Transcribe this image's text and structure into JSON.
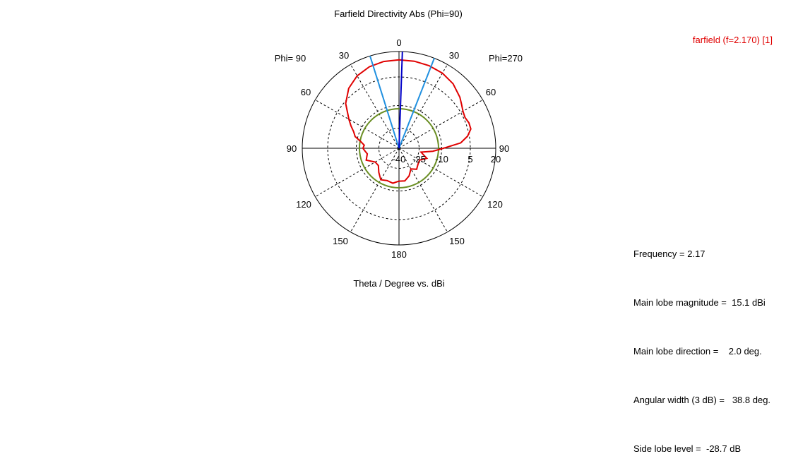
{
  "chart_data": {
    "type": "polar-line",
    "title": "Farfield Directivity Abs (Phi=90)",
    "xlabel": "Theta / Degree vs. dBi",
    "phi_left_label": "Phi= 90",
    "phi_right_label": "Phi=270",
    "angle_labels": {
      "top": "0",
      "upper_left": "30",
      "upper_right": "30",
      "left_60": "60",
      "right_60": "60",
      "left_90": "90",
      "right_90": "90",
      "left_120": "120",
      "right_120": "120",
      "left_150": "150",
      "right_150": "150",
      "bottom": "180"
    },
    "radial_tick_labels": [
      "-40",
      "-25",
      "-10",
      "5",
      "20"
    ],
    "radial_range": [
      -40,
      20
    ],
    "legend": {
      "entry": "farfield (f=2.170) [1]",
      "color": "#e00000",
      "placement": "top-right"
    },
    "colors": {
      "pattern": "#e00000",
      "main_lobe": "#0000c8",
      "beam_width": "#2090e0",
      "threshold": "#6a8e23",
      "grid": "#000000"
    },
    "series": [
      {
        "color": "#e00000",
        "theta_deg": [
          -180,
          -170,
          -160,
          -150,
          -140,
          -130,
          -120,
          -110,
          -100,
          -95,
          -90,
          -85,
          -80,
          -75,
          -70,
          -65,
          -60,
          -50,
          -40,
          -30,
          -20,
          -10,
          0,
          10,
          20,
          30,
          40,
          50,
          55,
          60,
          65,
          70,
          75,
          80,
          85,
          90,
          95,
          100,
          110,
          120,
          130,
          140,
          150,
          160,
          170,
          180
        ],
        "value_dbi": [
          -16.5,
          -14.8,
          -15.5,
          -14.2,
          -17.5,
          -20.5,
          -20.1,
          -15.2,
          -17,
          -15.8,
          -14.4,
          -15.2,
          -12.5,
          -8.6,
          -7.1,
          -4.6,
          -2.1,
          4.1,
          9.1,
          12.3,
          14.1,
          14.9,
          15.1,
          15.1,
          14.8,
          14.1,
          12.6,
          9.8,
          8.0,
          6.5,
          5.9,
          6.8,
          6.8,
          4.1,
          0.1,
          -9.1,
          -15.8,
          -23.5,
          -18.7,
          -22.6,
          -21.9,
          -20.1,
          -22.5,
          -18.8,
          -16.3,
          -16.5
        ]
      }
    ],
    "main_lobe_direction_deg": 2.0,
    "beam_width_lines_deg": [
      -17.4,
      21.4
    ],
    "threshold_level_dbi": -12.1,
    "info": {
      "frequency": "Frequency = 2.17",
      "magnitude": "Main lobe magnitude =  15.1 dBi",
      "direction": "Main lobe direction =    2.0 deg.",
      "angular_width": "Angular width (3 dB) =   38.8 deg.",
      "side_lobe": "Side lobe level =  -28.7 dB"
    }
  }
}
